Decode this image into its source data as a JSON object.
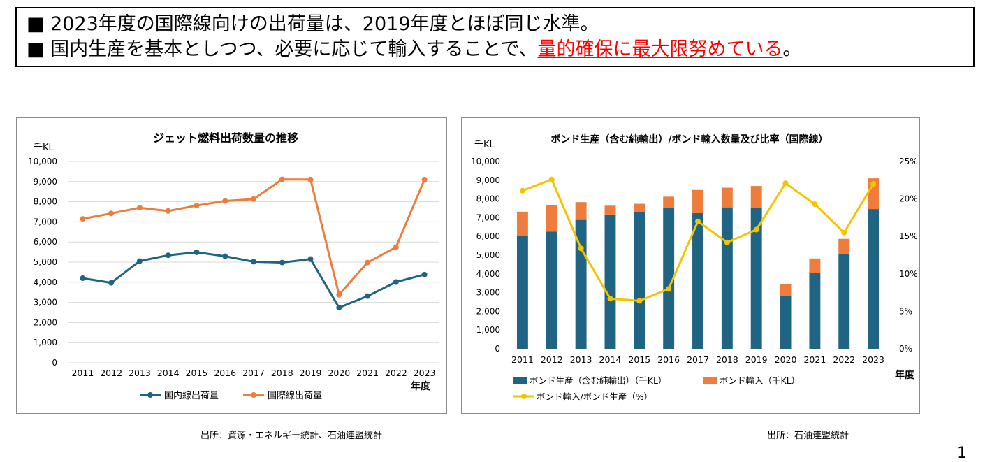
{
  "headline": {
    "line1": "■ 2023年度の国際線向けの出荷量は、2019年度とほぼ同じ水準。",
    "line2_prefix": "■ 国内生産を基本としつつ、必要に応じて輸入することで、",
    "line2_highlight": "量的確保に最大限努めている",
    "line2_suffix": "。"
  },
  "chart_data": [
    {
      "type": "line",
      "title": "ジェット燃料出荷数量の推移",
      "unit_label": "千KL",
      "xlabel": "年度",
      "ylim": [
        0,
        10000
      ],
      "yticks": [
        "0",
        "1,000",
        "2,000",
        "3,000",
        "4,000",
        "5,000",
        "6,000",
        "7,000",
        "8,000",
        "9,000",
        "10,000"
      ],
      "x": [
        "2011",
        "2012",
        "2013",
        "2014",
        "2015",
        "2016",
        "2017",
        "2018",
        "2019",
        "2020",
        "2021",
        "2022",
        "2023"
      ],
      "grid": true,
      "legend": "bottom",
      "series": [
        {
          "name": "国内線出荷量",
          "color": "#1f6482",
          "values": [
            4200,
            3970,
            5050,
            5340,
            5490,
            5290,
            5020,
            4980,
            5150,
            2740,
            3310,
            4010,
            4380
          ]
        },
        {
          "name": "国際線出荷量",
          "color": "#ee7c3c",
          "values": [
            7150,
            7420,
            7700,
            7540,
            7810,
            8040,
            8130,
            9110,
            9100,
            3380,
            4980,
            5740,
            9100
          ]
        }
      ]
    },
    {
      "type": "bar",
      "stacked": true,
      "title": "ボンド生産（含む純輸出）/ボンド輸入数量及び比率（国際線）",
      "unit_label": "千KL",
      "xlabel": "年度",
      "ylim": [
        0,
        10000
      ],
      "yticks": [
        "0",
        "1,000",
        "2,000",
        "3,000",
        "4,000",
        "5,000",
        "6,000",
        "7,000",
        "8,000",
        "9,000",
        "10,000"
      ],
      "y2lim": [
        0,
        25
      ],
      "y2ticks": [
        "0%",
        "5%",
        "10%",
        "15%",
        "20%",
        "25%"
      ],
      "categories": [
        "2011",
        "2012",
        "2013",
        "2014",
        "2015",
        "2016",
        "2017",
        "2018",
        "2019",
        "2020",
        "2021",
        "2022",
        "2023"
      ],
      "grid": false,
      "legend": "bottom",
      "series": [
        {
          "name": "ボンド生産（含む純輸出）（千KL）",
          "color": "#1f6482",
          "values": [
            6040,
            6260,
            6880,
            7170,
            7300,
            7500,
            7240,
            7550,
            7500,
            2830,
            4030,
            5070,
            7460
          ]
        },
        {
          "name": "ボンド輸入（千KL）",
          "color": "#ee7c3c",
          "values": [
            1280,
            1400,
            950,
            470,
            440,
            620,
            1240,
            1050,
            1190,
            620,
            790,
            800,
            1640
          ]
        },
        {
          "name": "ボンド輸入/ボンド生産（%）",
          "color": "#f4c400",
          "axis": "right",
          "type": "line",
          "values": [
            21.1,
            22.6,
            13.4,
            6.7,
            6.4,
            8.0,
            17.0,
            14.2,
            15.9,
            22.1,
            19.3,
            15.5,
            22.0
          ]
        }
      ]
    }
  ],
  "sources": {
    "left": "出所：資源・エネルギー統計、石油連盟統計",
    "right": "出所：石油連盟統計"
  },
  "page_number": "1"
}
